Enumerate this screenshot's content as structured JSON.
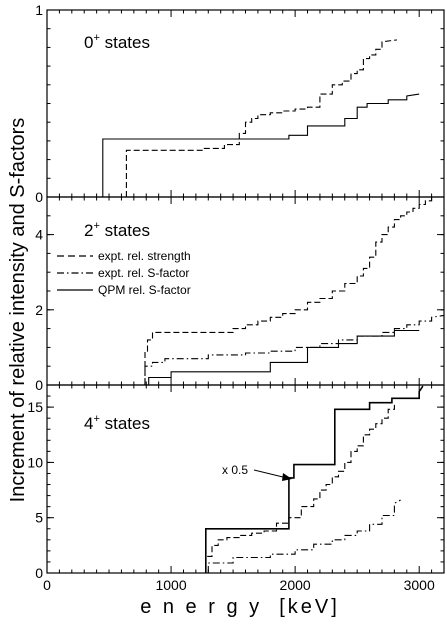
{
  "chart_data": {
    "type": "line",
    "xlabel": "e n e r g y  [keV]",
    "ylabel": "Increment of relative intensity and S-factors",
    "xlim": [
      0,
      3200
    ],
    "x_ticks": [
      "0",
      "1000",
      "2000",
      "3000"
    ],
    "legend": {
      "placement": "upper-left of middle panel",
      "entries": [
        "expt. rel. strength",
        "expt. rel. S-factor",
        "QPM rel. S-factor"
      ]
    },
    "annotation": "x 0.5",
    "panels": [
      {
        "label_main": "0",
        "label_sup": "+",
        "label_rest": " states",
        "ylim": [
          0,
          1
        ],
        "y_ticks": [
          {
            "v": 0,
            "t": "0"
          },
          {
            "v": 1,
            "t": "1"
          }
        ],
        "series": [
          {
            "name": "expt. rel. strength",
            "style": "dashed",
            "x": [
              640,
              640,
              1260,
              1260,
              1430,
              1430,
              1550,
              1550,
              1600,
              1600,
              1650,
              1650,
              1700,
              1700,
              1800,
              1800,
              1900,
              1900,
              2000,
              2000,
              2100,
              2100,
              2200,
              2200,
              2300,
              2300,
              2380,
              2380,
              2450,
              2450,
              2500,
              2500,
              2550,
              2550,
              2600,
              2600,
              2650,
              2650,
              2700,
              2700,
              2820
            ],
            "y": [
              0,
              0.25,
              0.25,
              0.26,
              0.26,
              0.28,
              0.28,
              0.34,
              0.34,
              0.4,
              0.4,
              0.42,
              0.42,
              0.44,
              0.44,
              0.45,
              0.45,
              0.46,
              0.46,
              0.47,
              0.47,
              0.48,
              0.48,
              0.55,
              0.55,
              0.6,
              0.6,
              0.62,
              0.62,
              0.66,
              0.66,
              0.68,
              0.68,
              0.74,
              0.74,
              0.76,
              0.76,
              0.79,
              0.79,
              0.83,
              0.84
            ]
          },
          {
            "name": "QPM rel. S-factor",
            "style": "solid",
            "x": [
              450,
              450,
              1950,
              1950,
              2100,
              2100,
              2400,
              2400,
              2500,
              2500,
              2580,
              2580,
              2750,
              2750,
              2900,
              2900,
              3000
            ],
            "y": [
              0,
              0.31,
              0.31,
              0.33,
              0.33,
              0.38,
              0.38,
              0.42,
              0.42,
              0.48,
              0.48,
              0.5,
              0.5,
              0.52,
              0.52,
              0.54,
              0.55
            ]
          }
        ]
      },
      {
        "label_main": "2",
        "label_sup": "+",
        "label_rest": " states",
        "ylim": [
          0,
          5
        ],
        "y_ticks": [
          {
            "v": 0,
            "t": "0"
          },
          {
            "v": 2,
            "t": "2"
          },
          {
            "v": 4,
            "t": "4"
          }
        ],
        "series": [
          {
            "name": "expt. rel. strength",
            "style": "dashed",
            "x": [
              790,
              790,
              810,
              810,
              850,
              850,
              1500,
              1500,
              1600,
              1600,
              1700,
              1700,
              1800,
              1800,
              1900,
              1900,
              2000,
              2000,
              2100,
              2100,
              2200,
              2200,
              2300,
              2300,
              2400,
              2400,
              2500,
              2500,
              2550,
              2550,
              2600,
              2600,
              2650,
              2650,
              2700,
              2700,
              2750,
              2750,
              2800,
              2800,
              2850,
              2850,
              2900,
              2900,
              2950,
              2950,
              3000,
              3000,
              3050,
              3050,
              3100,
              3100,
              3200
            ],
            "y": [
              0,
              0.9,
              0.9,
              1.2,
              1.2,
              1.4,
              1.4,
              1.5,
              1.5,
              1.6,
              1.6,
              1.7,
              1.7,
              1.8,
              1.8,
              1.9,
              1.9,
              2.0,
              2.0,
              2.2,
              2.2,
              2.3,
              2.3,
              2.5,
              2.5,
              2.7,
              2.7,
              2.9,
              2.9,
              3.1,
              3.1,
              3.4,
              3.4,
              3.8,
              3.8,
              4.0,
              4.0,
              4.2,
              4.2,
              4.4,
              4.4,
              4.5,
              4.5,
              4.6,
              4.6,
              4.7,
              4.7,
              4.8,
              4.8,
              4.9,
              4.9,
              5.0,
              5.0
            ]
          },
          {
            "name": "expt. rel. S-factor",
            "style": "dashdot",
            "x": [
              790,
              790,
              850,
              850,
              950,
              950,
              1300,
              1300,
              1600,
              1600,
              1800,
              1800,
              2000,
              2000,
              2200,
              2200,
              2350,
              2350,
              2500,
              2500,
              2700,
              2700,
              2800,
              2800,
              2900,
              2900,
              3000,
              3000,
              3100,
              3100,
              3200
            ],
            "y": [
              0,
              0.5,
              0.5,
              0.6,
              0.6,
              0.7,
              0.7,
              0.8,
              0.8,
              0.85,
              0.85,
              0.9,
              0.9,
              1.0,
              1.0,
              1.1,
              1.1,
              1.2,
              1.2,
              1.3,
              1.3,
              1.4,
              1.4,
              1.5,
              1.5,
              1.6,
              1.6,
              1.7,
              1.7,
              1.8,
              1.85
            ]
          },
          {
            "name": "QPM rel. S-factor",
            "style": "solid",
            "x": [
              820,
              820,
              1000,
              1000,
              1800,
              1800,
              2100,
              2100,
              2350,
              2350,
              2500,
              2500,
              2800,
              2800,
              3000
            ],
            "y": [
              0,
              0.2,
              0.2,
              0.35,
              0.35,
              0.6,
              0.6,
              1.0,
              1.0,
              1.1,
              1.1,
              1.3,
              1.3,
              1.45,
              1.45
            ]
          }
        ]
      },
      {
        "label_main": "4",
        "label_sup": "+",
        "label_rest": " states",
        "ylim": [
          0,
          17
        ],
        "y_ticks": [
          {
            "v": 0,
            "t": "0"
          },
          {
            "v": 5,
            "t": "5"
          },
          {
            "v": 10,
            "t": "10"
          },
          {
            "v": 15,
            "t": "15"
          }
        ],
        "series": [
          {
            "name": "expt. rel. strength",
            "style": "dashed",
            "x": [
              1280,
              1280,
              1330,
              1330,
              1380,
              1380,
              1450,
              1450,
              1550,
              1550,
              1650,
              1650,
              1750,
              1750,
              1850,
              1850,
              1950,
              1950,
              2050,
              2050,
              2150,
              2150,
              2200,
              2200,
              2250,
              2250,
              2300,
              2300,
              2350,
              2350,
              2400,
              2400,
              2450,
              2450,
              2500,
              2500,
              2550,
              2550,
              2600,
              2600,
              2650,
              2650,
              2700,
              2700,
              2750,
              2750,
              2800,
              2800
            ],
            "y": [
              0,
              1.5,
              1.5,
              2.5,
              2.5,
              3.0,
              3.0,
              3.2,
              3.2,
              3.4,
              3.4,
              3.6,
              3.6,
              3.8,
              3.8,
              4.5,
              4.5,
              5.0,
              5.0,
              6.0,
              6.0,
              6.7,
              6.7,
              7.5,
              7.5,
              8.0,
              8.0,
              8.7,
              8.7,
              9.2,
              9.2,
              10.0,
              10.0,
              11.0,
              11.0,
              11.5,
              11.5,
              12.5,
              12.5,
              13.0,
              13.0,
              13.5,
              13.5,
              14.0,
              14.0,
              14.8,
              14.8,
              15.2
            ]
          },
          {
            "name": "expt. rel. S-factor",
            "style": "dashdot",
            "x": [
              1300,
              1300,
              1500,
              1500,
              1800,
              1800,
              2000,
              2000,
              2150,
              2150,
              2300,
              2300,
              2400,
              2400,
              2500,
              2500,
              2600,
              2600,
              2700,
              2700,
              2800,
              2800,
              2850
            ],
            "y": [
              0,
              0.9,
              0.9,
              1.4,
              1.4,
              1.7,
              1.7,
              2.1,
              2.1,
              2.6,
              2.6,
              3.0,
              3.0,
              3.4,
              3.4,
              3.8,
              3.8,
              4.4,
              4.4,
              5.2,
              5.2,
              6.3,
              6.6
            ]
          },
          {
            "name": "QPM rel. S-factor",
            "style": "solid",
            "x": [
              1280,
              1280,
              1950,
              1950,
              1990,
              1990,
              2320,
              2320,
              2600,
              2600,
              2780,
              2780,
              3000,
              3000,
              3030
            ],
            "y": [
              0,
              4.0,
              4.0,
              8.6,
              8.6,
              9.8,
              9.8,
              14.8,
              14.8,
              15.4,
              15.4,
              15.8,
              15.8,
              16.4,
              16.9
            ]
          }
        ]
      }
    ]
  }
}
